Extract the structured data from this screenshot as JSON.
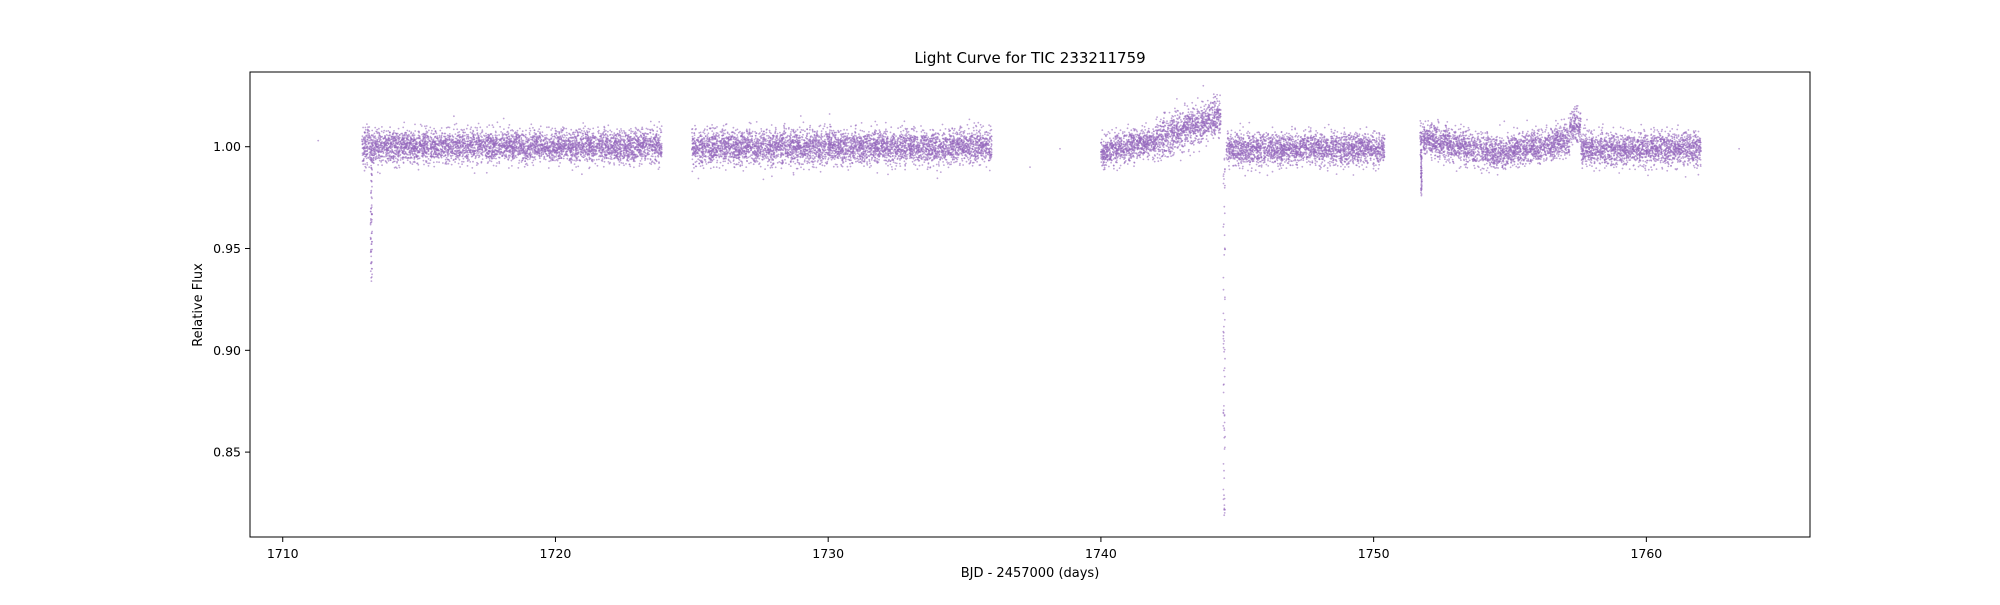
{
  "chart_data": {
    "type": "scatter",
    "title": "Light Curve for TIC 233211759",
    "xlabel": "BJD - 2457000 (days)",
    "ylabel": "Relative Flux",
    "xlim": [
      1708.8,
      1766.0
    ],
    "ylim": [
      0.8083,
      1.0367
    ],
    "xticks": [
      1710,
      1720,
      1730,
      1740,
      1750,
      1760
    ],
    "xtick_labels": [
      "1710",
      "1720",
      "1730",
      "1740",
      "1750",
      "1760"
    ],
    "yticks": [
      0.85,
      0.9,
      0.95,
      1.0
    ],
    "ytick_labels": [
      "0.85",
      "0.90",
      "0.95",
      "1.00"
    ],
    "grid": false,
    "legend": "none",
    "marker_color": "#9467bd",
    "series": [
      {
        "segments": [
          {
            "x_start": 1712.9,
            "x_end": 1713.4,
            "baseline": 1.0,
            "scatter": 0.005
          },
          {
            "x_start": 1713.4,
            "x_end": 1723.9,
            "baseline": 1.0,
            "scatter": 0.004
          },
          {
            "x_start": 1725.0,
            "x_end": 1736.0,
            "baseline": 1.0,
            "scatter": 0.0042
          },
          {
            "x_start": 1740.0,
            "x_end": 1742.0,
            "baseline_from": 0.997,
            "baseline_to": 1.003,
            "scatter": 0.004
          },
          {
            "x_start": 1742.0,
            "x_end": 1744.4,
            "baseline_from": 1.003,
            "baseline_to": 1.015,
            "scatter": 0.005
          },
          {
            "x_start": 1744.6,
            "x_end": 1750.4,
            "baseline": 0.999,
            "scatter": 0.004
          },
          {
            "x_start": 1751.7,
            "x_end": 1754.5,
            "baseline_from": 1.004,
            "baseline_to": 0.997,
            "scatter": 0.004
          },
          {
            "x_start": 1754.5,
            "x_end": 1757.2,
            "baseline_from": 0.997,
            "baseline_to": 1.003,
            "scatter": 0.004
          },
          {
            "x_start": 1757.2,
            "x_end": 1757.6,
            "baseline": 1.01,
            "scatter": 0.004
          },
          {
            "x_start": 1757.6,
            "x_end": 1762.0,
            "baseline": 0.999,
            "scatter": 0.004
          }
        ],
        "dips": [
          {
            "x": 1713.25,
            "depth_min": 0.934,
            "width": 0.12
          },
          {
            "x": 1744.52,
            "depth_min": 0.819,
            "width": 0.14
          },
          {
            "x": 1751.75,
            "depth_min": 0.976,
            "width": 0.08
          }
        ],
        "isolated_points": [
          {
            "x": 1711.3,
            "y": 1.003
          },
          {
            "x": 1737.4,
            "y": 0.99
          },
          {
            "x": 1738.5,
            "y": 0.999
          },
          {
            "x": 1763.4,
            "y": 0.999
          }
        ]
      }
    ]
  }
}
